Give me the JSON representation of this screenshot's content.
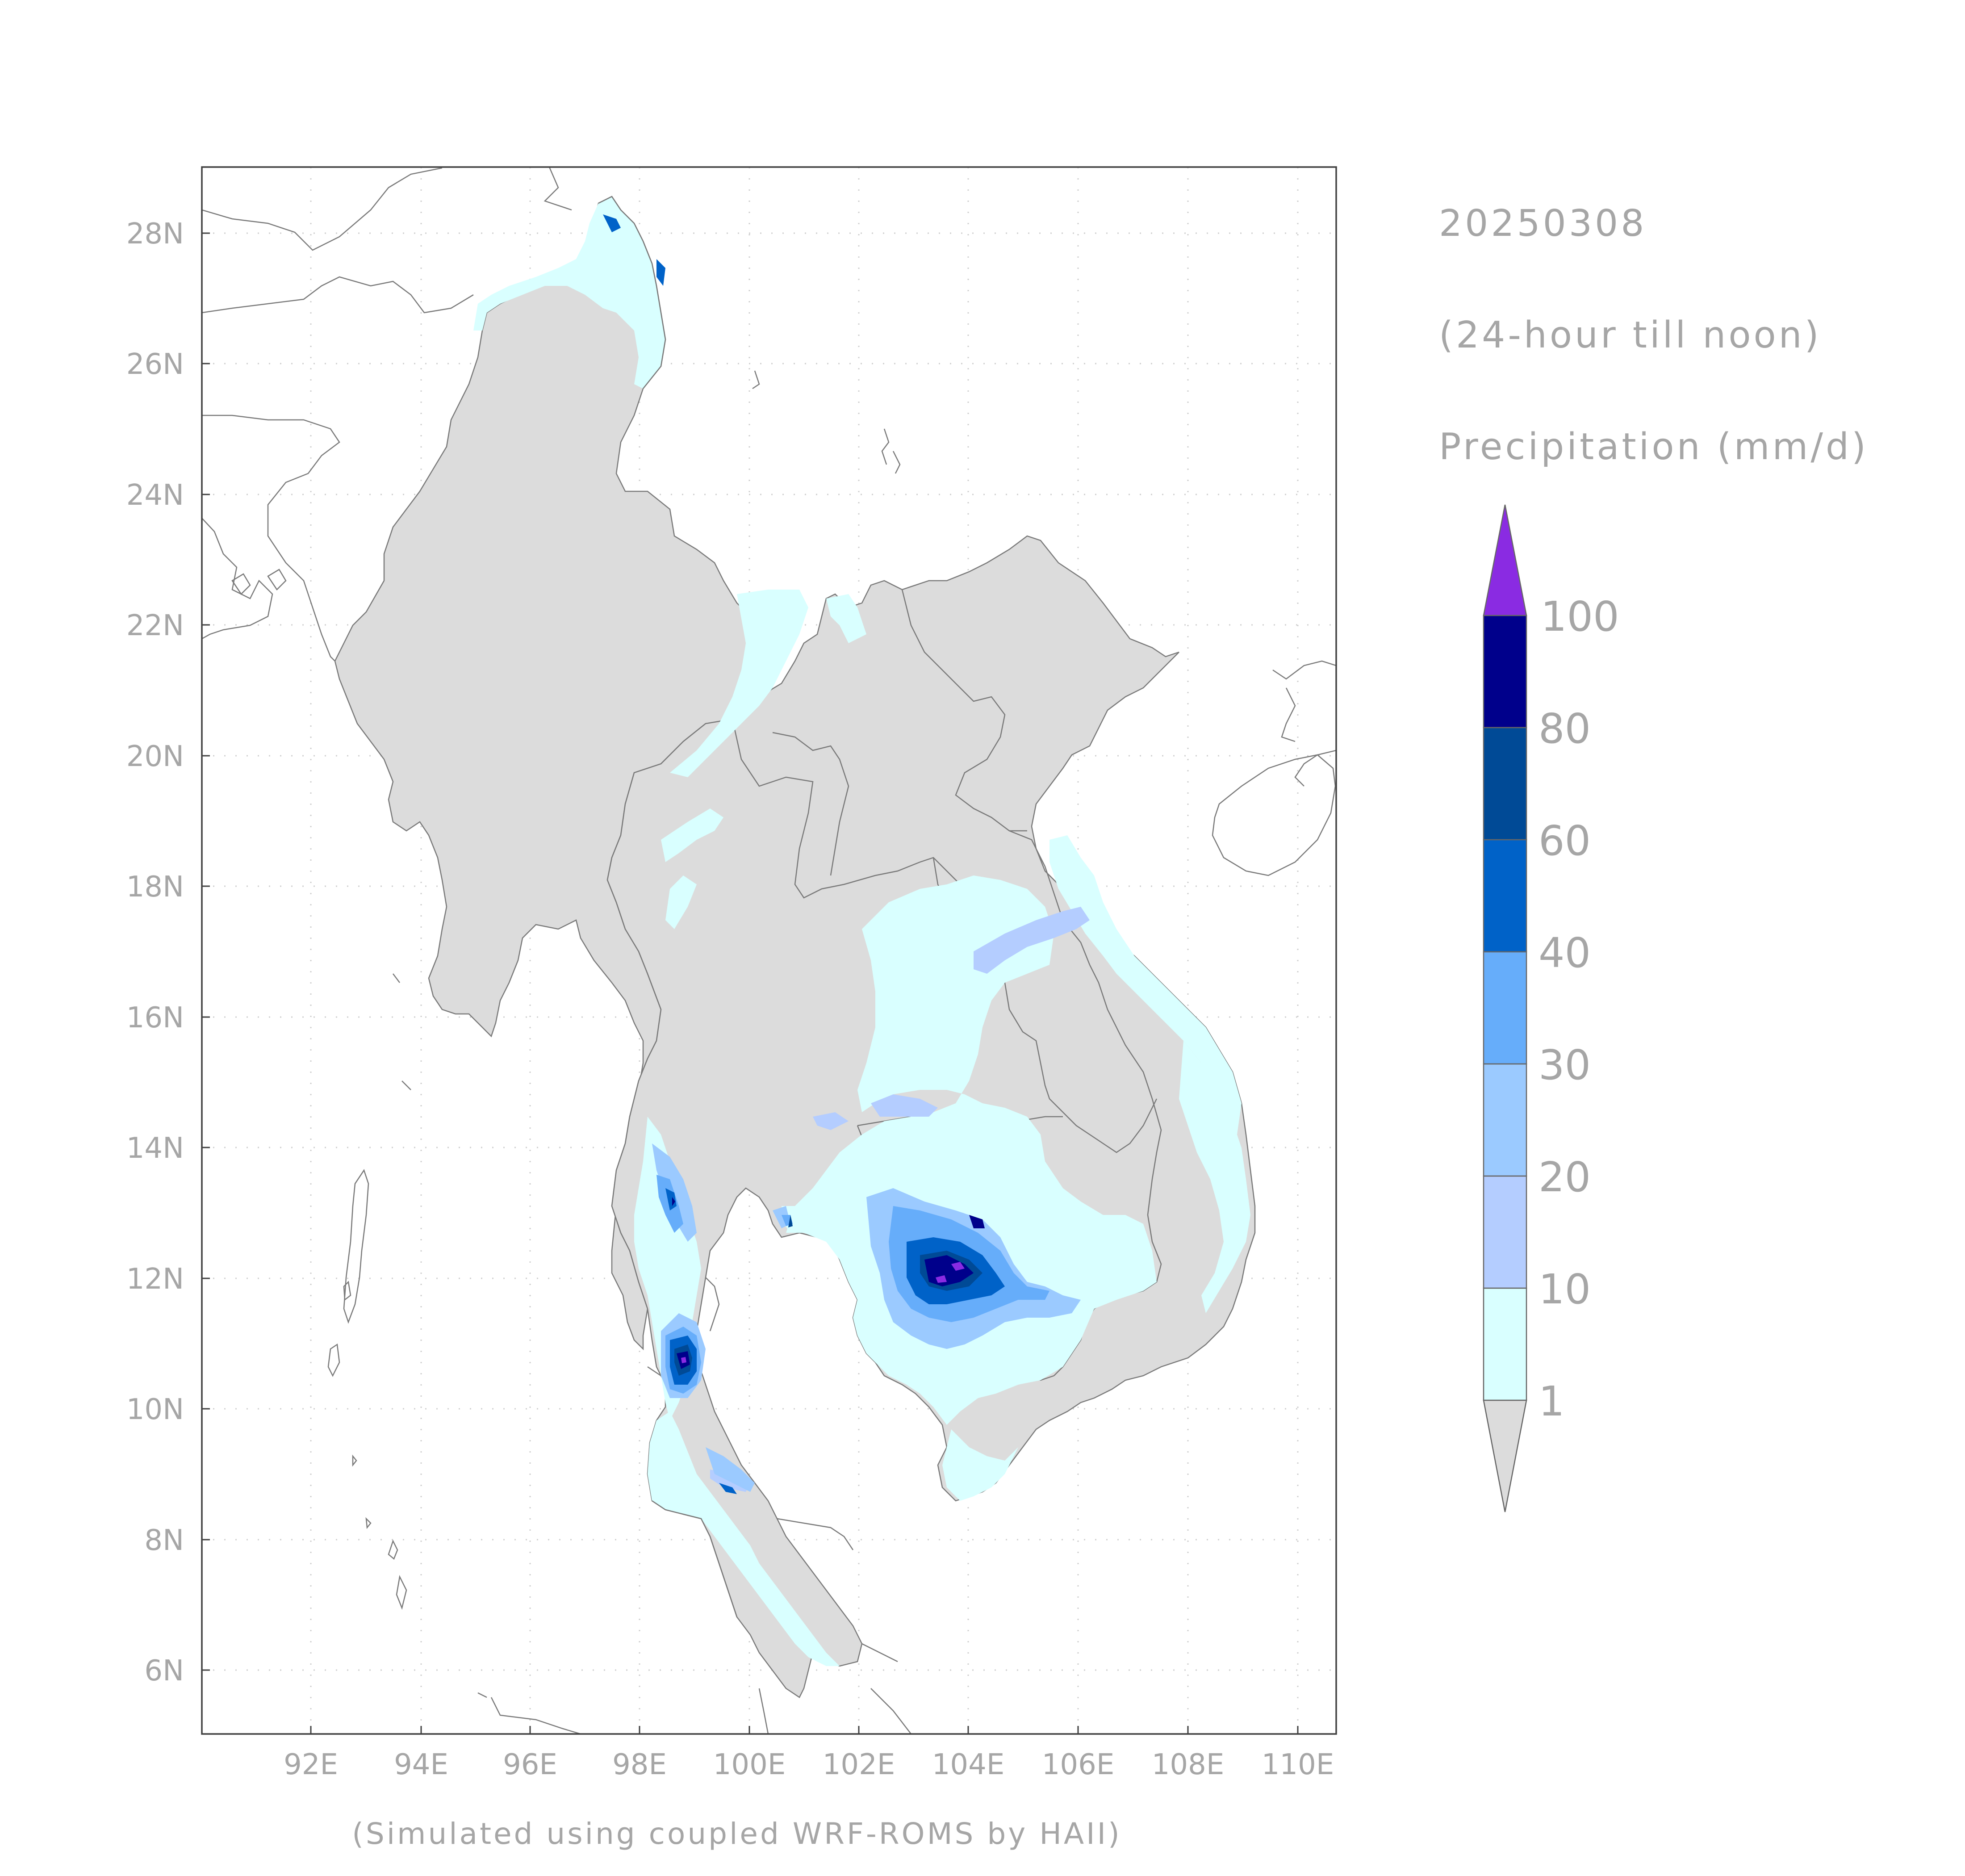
{
  "header": {
    "date": "20250308",
    "period": "(24-hour till noon)",
    "variable": "Precipitation (mm/d)"
  },
  "footer": {
    "credit": "(Simulated using coupled WRF-ROMS by HAII)"
  },
  "axes": {
    "x_ticks": [
      "92E",
      "94E",
      "96E",
      "98E",
      "100E",
      "102E",
      "104E",
      "106E",
      "108E",
      "110E"
    ],
    "y_ticks": [
      "28N",
      "26N",
      "24N",
      "22N",
      "20N",
      "18N",
      "16N",
      "14N",
      "12N",
      "10N",
      "8N",
      "6N"
    ]
  },
  "colorbar": {
    "labels": [
      "100",
      "80",
      "60",
      "40",
      "30",
      "20",
      "10",
      "1"
    ],
    "colors": {
      "below_1": "#dcdcdc",
      "1-10": "#d9ffff",
      "10-20": "#b4cdff",
      "20-30": "#9bcaff",
      "30-40": "#66adfa",
      "40-60": "#0062c8",
      "60-80": "#004a96",
      "80-100": "#00008b",
      "above_100": "#8a2be2"
    }
  }
}
